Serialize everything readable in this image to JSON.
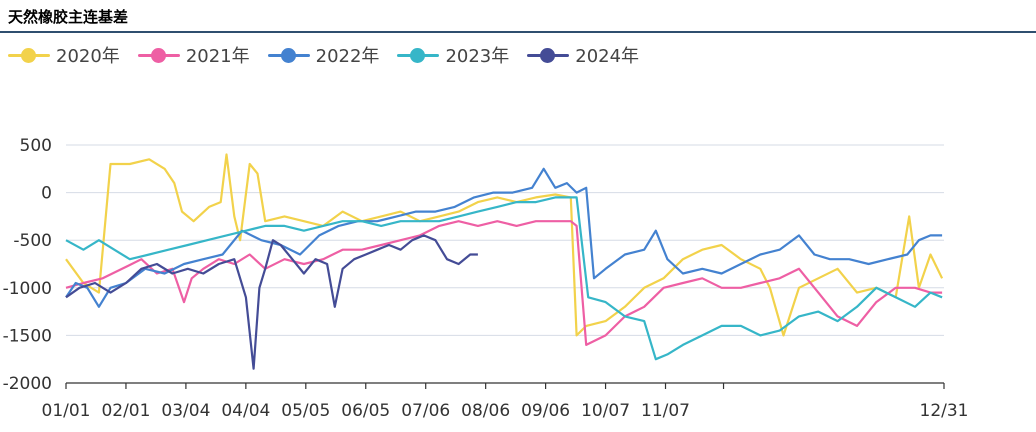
{
  "title": "天然橡胶主连基差",
  "chart_data": {
    "type": "line",
    "title": "天然橡胶主连基差",
    "xlabel": "",
    "ylabel": "",
    "x_ticks": [
      "01/01",
      "02/01",
      "03/04",
      "04/04",
      "05/05",
      "06/05",
      "07/06",
      "08/06",
      "09/06",
      "10/07",
      "11/07",
      "",
      "12/31"
    ],
    "ylim": [
      -2000,
      500
    ],
    "y_ticks": [
      500,
      0,
      -500,
      -1000,
      -1500,
      -2000
    ],
    "grid": true,
    "legend": "top-left",
    "series": [
      {
        "name": "2020年",
        "color": "#f2d24b",
        "points": [
          [
            1,
            -700
          ],
          [
            10,
            -950
          ],
          [
            18,
            -1050
          ],
          [
            24,
            300
          ],
          [
            34,
            300
          ],
          [
            44,
            350
          ],
          [
            52,
            250
          ],
          [
            57,
            100
          ],
          [
            61,
            -200
          ],
          [
            67,
            -300
          ],
          [
            75,
            -150
          ],
          [
            81,
            -100
          ],
          [
            84,
            400
          ],
          [
            88,
            -250
          ],
          [
            91,
            -500
          ],
          [
            96,
            300
          ],
          [
            100,
            200
          ],
          [
            104,
            -300
          ],
          [
            114,
            -250
          ],
          [
            124,
            -300
          ],
          [
            134,
            -350
          ],
          [
            144,
            -200
          ],
          [
            154,
            -300
          ],
          [
            164,
            -250
          ],
          [
            174,
            -200
          ],
          [
            184,
            -300
          ],
          [
            194,
            -250
          ],
          [
            204,
            -200
          ],
          [
            214,
            -100
          ],
          [
            224,
            -50
          ],
          [
            234,
            -100
          ],
          [
            244,
            -50
          ],
          [
            254,
            -20
          ],
          [
            262,
            -50
          ],
          [
            265,
            -1500
          ],
          [
            270,
            -1400
          ],
          [
            280,
            -1350
          ],
          [
            290,
            -1200
          ],
          [
            300,
            -1000
          ],
          [
            310,
            -900
          ],
          [
            320,
            -700
          ],
          [
            330,
            -600
          ],
          [
            340,
            -550
          ],
          [
            350,
            -700
          ],
          [
            360,
            -800
          ],
          [
            365,
            -1000
          ],
          [
            372,
            -1500
          ],
          [
            380,
            -1000
          ],
          [
            390,
            -900
          ],
          [
            400,
            -800
          ],
          [
            410,
            -1050
          ],
          [
            420,
            -1000
          ],
          [
            430,
            -1100
          ],
          [
            437,
            -250
          ],
          [
            442,
            -1000
          ],
          [
            448,
            -650
          ],
          [
            454,
            -900
          ]
        ]
      },
      {
        "name": "2021年",
        "color": "#ee5fa4",
        "points": [
          [
            1,
            -1000
          ],
          [
            10,
            -950
          ],
          [
            20,
            -900
          ],
          [
            30,
            -800
          ],
          [
            40,
            -700
          ],
          [
            48,
            -850
          ],
          [
            56,
            -800
          ],
          [
            62,
            -1150
          ],
          [
            66,
            -900
          ],
          [
            72,
            -800
          ],
          [
            80,
            -700
          ],
          [
            88,
            -750
          ],
          [
            96,
            -650
          ],
          [
            104,
            -800
          ],
          [
            114,
            -700
          ],
          [
            124,
            -750
          ],
          [
            134,
            -700
          ],
          [
            144,
            -600
          ],
          [
            154,
            -600
          ],
          [
            164,
            -550
          ],
          [
            174,
            -500
          ],
          [
            184,
            -450
          ],
          [
            194,
            -350
          ],
          [
            204,
            -300
          ],
          [
            214,
            -350
          ],
          [
            224,
            -300
          ],
          [
            234,
            -350
          ],
          [
            244,
            -300
          ],
          [
            254,
            -300
          ],
          [
            262,
            -300
          ],
          [
            265,
            -350
          ],
          [
            270,
            -1600
          ],
          [
            280,
            -1500
          ],
          [
            290,
            -1300
          ],
          [
            300,
            -1200
          ],
          [
            310,
            -1000
          ],
          [
            320,
            -950
          ],
          [
            330,
            -900
          ],
          [
            340,
            -1000
          ],
          [
            350,
            -1000
          ],
          [
            360,
            -950
          ],
          [
            370,
            -900
          ],
          [
            380,
            -800
          ],
          [
            390,
            -1050
          ],
          [
            400,
            -1300
          ],
          [
            410,
            -1400
          ],
          [
            420,
            -1150
          ],
          [
            430,
            -1000
          ],
          [
            440,
            -1000
          ],
          [
            448,
            -1050
          ],
          [
            454,
            -1050
          ]
        ]
      },
      {
        "name": "2022年",
        "color": "#4482d0",
        "points": [
          [
            1,
            -1100
          ],
          [
            6,
            -950
          ],
          [
            12,
            -1000
          ],
          [
            18,
            -1200
          ],
          [
            24,
            -1000
          ],
          [
            32,
            -950
          ],
          [
            42,
            -800
          ],
          [
            52,
            -850
          ],
          [
            62,
            -750
          ],
          [
            72,
            -700
          ],
          [
            82,
            -650
          ],
          [
            92,
            -400
          ],
          [
            102,
            -500
          ],
          [
            112,
            -550
          ],
          [
            122,
            -650
          ],
          [
            132,
            -450
          ],
          [
            142,
            -350
          ],
          [
            152,
            -300
          ],
          [
            162,
            -300
          ],
          [
            172,
            -250
          ],
          [
            182,
            -200
          ],
          [
            192,
            -200
          ],
          [
            202,
            -150
          ],
          [
            212,
            -50
          ],
          [
            222,
            0
          ],
          [
            232,
            0
          ],
          [
            242,
            50
          ],
          [
            248,
            250
          ],
          [
            254,
            50
          ],
          [
            260,
            100
          ],
          [
            265,
            0
          ],
          [
            270,
            50
          ],
          [
            274,
            -900
          ],
          [
            280,
            -800
          ],
          [
            290,
            -650
          ],
          [
            300,
            -600
          ],
          [
            306,
            -400
          ],
          [
            312,
            -700
          ],
          [
            320,
            -850
          ],
          [
            330,
            -800
          ],
          [
            340,
            -850
          ],
          [
            350,
            -750
          ],
          [
            360,
            -650
          ],
          [
            370,
            -600
          ],
          [
            380,
            -450
          ],
          [
            388,
            -650
          ],
          [
            396,
            -700
          ],
          [
            406,
            -700
          ],
          [
            416,
            -750
          ],
          [
            426,
            -700
          ],
          [
            436,
            -650
          ],
          [
            442,
            -500
          ],
          [
            448,
            -450
          ],
          [
            454,
            -450
          ]
        ]
      },
      {
        "name": "2023年",
        "color": "#36b6c8",
        "points": [
          [
            1,
            -500
          ],
          [
            10,
            -600
          ],
          [
            18,
            -500
          ],
          [
            26,
            -600
          ],
          [
            34,
            -700
          ],
          [
            44,
            -650
          ],
          [
            54,
            -600
          ],
          [
            64,
            -550
          ],
          [
            74,
            -500
          ],
          [
            84,
            -450
          ],
          [
            94,
            -400
          ],
          [
            104,
            -350
          ],
          [
            114,
            -350
          ],
          [
            124,
            -400
          ],
          [
            134,
            -350
          ],
          [
            144,
            -300
          ],
          [
            154,
            -300
          ],
          [
            164,
            -350
          ],
          [
            174,
            -300
          ],
          [
            184,
            -300
          ],
          [
            194,
            -300
          ],
          [
            204,
            -250
          ],
          [
            214,
            -200
          ],
          [
            224,
            -150
          ],
          [
            234,
            -100
          ],
          [
            244,
            -100
          ],
          [
            254,
            -50
          ],
          [
            262,
            -50
          ],
          [
            265,
            -50
          ],
          [
            271,
            -1100
          ],
          [
            280,
            -1150
          ],
          [
            290,
            -1300
          ],
          [
            300,
            -1350
          ],
          [
            306,
            -1750
          ],
          [
            312,
            -1700
          ],
          [
            320,
            -1600
          ],
          [
            330,
            -1500
          ],
          [
            340,
            -1400
          ],
          [
            350,
            -1400
          ],
          [
            360,
            -1500
          ],
          [
            370,
            -1450
          ],
          [
            380,
            -1300
          ],
          [
            390,
            -1250
          ],
          [
            400,
            -1350
          ],
          [
            410,
            -1200
          ],
          [
            420,
            -1000
          ],
          [
            430,
            -1100
          ],
          [
            440,
            -1200
          ],
          [
            448,
            -1050
          ],
          [
            454,
            -1100
          ]
        ]
      },
      {
        "name": "2024年",
        "color": "#444c96",
        "points": [
          [
            1,
            -1100
          ],
          [
            8,
            -1000
          ],
          [
            16,
            -950
          ],
          [
            24,
            -1050
          ],
          [
            32,
            -950
          ],
          [
            40,
            -800
          ],
          [
            48,
            -750
          ],
          [
            56,
            -850
          ],
          [
            64,
            -800
          ],
          [
            72,
            -850
          ],
          [
            80,
            -750
          ],
          [
            88,
            -700
          ],
          [
            94,
            -1100
          ],
          [
            98,
            -1850
          ],
          [
            101,
            -1000
          ],
          [
            104,
            -800
          ],
          [
            108,
            -500
          ],
          [
            112,
            -550
          ],
          [
            118,
            -700
          ],
          [
            124,
            -850
          ],
          [
            130,
            -700
          ],
          [
            136,
            -750
          ],
          [
            140,
            -1200
          ],
          [
            144,
            -800
          ],
          [
            150,
            -700
          ],
          [
            156,
            -650
          ],
          [
            162,
            -600
          ],
          [
            168,
            -550
          ],
          [
            174,
            -600
          ],
          [
            180,
            -500
          ],
          [
            186,
            -450
          ],
          [
            192,
            -500
          ],
          [
            198,
            -700
          ],
          [
            204,
            -750
          ],
          [
            210,
            -650
          ],
          [
            214,
            -650
          ]
        ]
      }
    ]
  }
}
